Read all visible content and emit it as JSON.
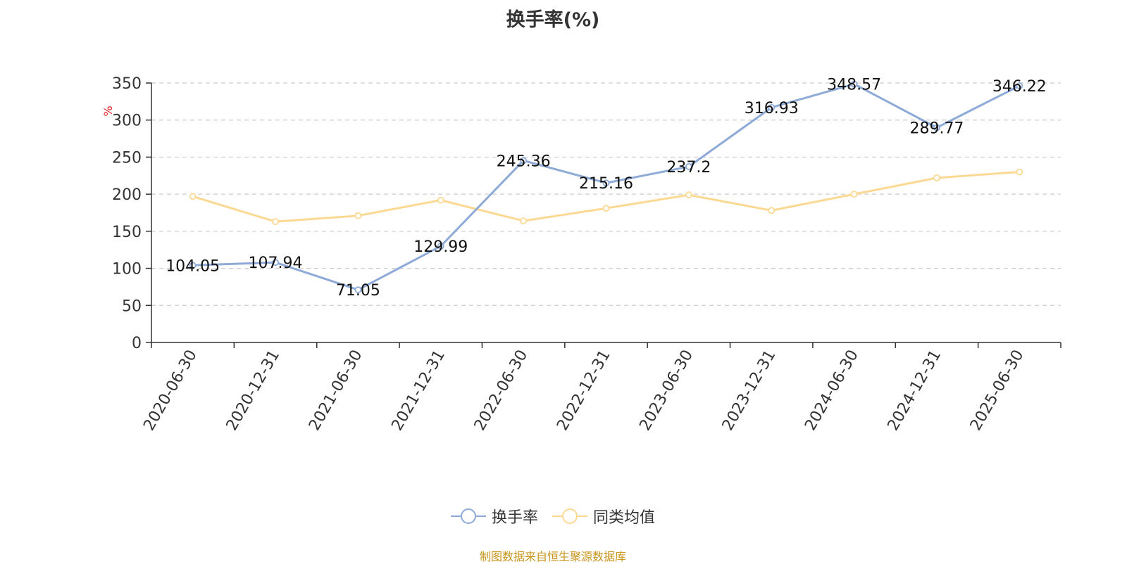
{
  "chart_data": {
    "type": "line",
    "title": "换手率(%)",
    "ylabel": "%",
    "xlabel": "",
    "ylim": [
      0,
      350
    ],
    "yticks": [
      0,
      50,
      100,
      150,
      200,
      250,
      300,
      350
    ],
    "grid": true,
    "legend_position": "bottom",
    "categories": [
      "2020-06-30",
      "2020-12-31",
      "2021-06-30",
      "2021-12-31",
      "2022-06-30",
      "2022-12-31",
      "2023-06-30",
      "2023-12-31",
      "2024-06-30",
      "2024-12-31",
      "2025-06-30"
    ],
    "series": [
      {
        "name": "换手率",
        "color": "#8eaad8",
        "values": [
          104.05,
          107.94,
          71.05,
          129.99,
          245.36,
          215.16,
          237.2,
          316.93,
          348.57,
          289.77,
          346.22
        ],
        "labels": [
          "104.05",
          "107.94",
          "71.05",
          "129.99",
          "245.36",
          "215.16",
          "237.2",
          "316.93",
          "348.57",
          "289.77",
          "346.22"
        ]
      },
      {
        "name": "同类均值",
        "color": "#fcd993",
        "values": [
          197,
          163,
          171,
          192,
          164,
          181,
          199,
          178,
          200,
          222,
          230
        ]
      }
    ]
  },
  "footer": {
    "source": "制图数据来自恒生聚源数据库"
  }
}
